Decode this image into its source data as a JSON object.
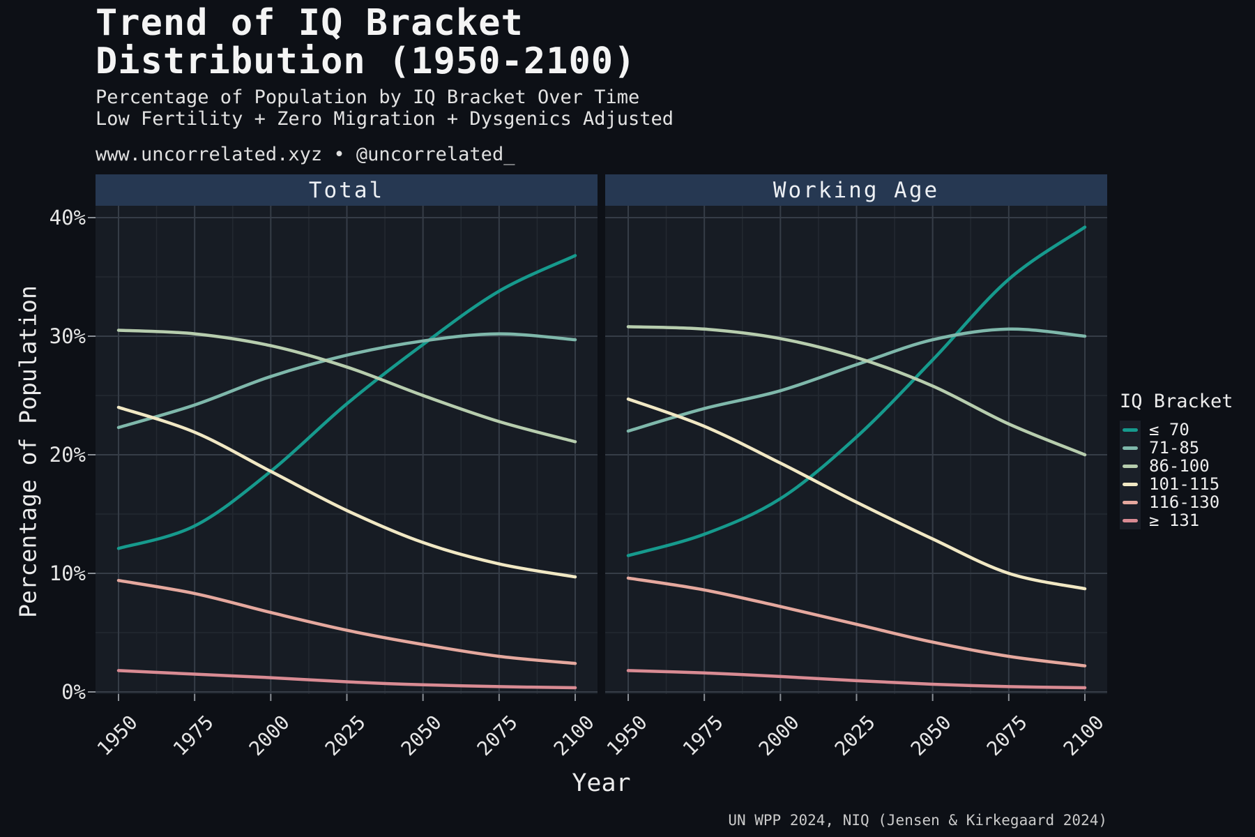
{
  "header": {
    "title_line1": "Trend of IQ Bracket",
    "title_line2": "Distribution (1950-2100)",
    "subtitle_line1": "Percentage of Population by IQ Bracket Over Time",
    "subtitle_line2": "Low Fertility + Zero Migration + Dysgenics Adjusted",
    "watermark": "www.uncorrelated.xyz • @uncorrelated_"
  },
  "axes": {
    "y_title": "Percentage of Population",
    "x_title": "Year"
  },
  "caption": "UN WPP 2024, NIQ (Jensen & Kirkegaard 2024)",
  "legend": {
    "title": "IQ Bracket"
  },
  "colors": {
    "page_bg": "#0d1016",
    "panel_bg": "#171c24",
    "strip_bg": "#263852",
    "grid_major": "#363d47",
    "grid_minor": "#232931",
    "tick": "#8a8f96"
  },
  "chart_data": {
    "type": "line",
    "x": [
      1950,
      1975,
      2000,
      2025,
      2050,
      2075,
      2100
    ],
    "x_tick_labels": [
      "1950",
      "1975",
      "2000",
      "2025",
      "2050",
      "2075",
      "2100"
    ],
    "y_ticks": [
      {
        "label": "0%",
        "value": 0
      },
      {
        "label": "10%",
        "value": 10
      },
      {
        "label": "20%",
        "value": 20
      },
      {
        "label": "30%",
        "value": 30
      },
      {
        "label": "40%",
        "value": 40
      }
    ],
    "ylim": [
      0,
      41.2
    ],
    "grid": true,
    "legend_position": "right",
    "panels": [
      {
        "label": "Total",
        "series": [
          {
            "name": "≤ 70",
            "key": "le70",
            "color": "#169a8d",
            "values": [
              12.1,
              14.0,
              18.6,
              24.3,
              29.3,
              33.8,
              36.8
            ]
          },
          {
            "name": "71-85",
            "key": "b71_85",
            "color": "#7fb8ab",
            "values": [
              22.3,
              24.2,
              26.6,
              28.4,
              29.6,
              30.2,
              29.7
            ]
          },
          {
            "name": "86-100",
            "key": "b86_100",
            "color": "#b7cdae",
            "values": [
              30.5,
              30.2,
              29.2,
              27.4,
              25.0,
              22.8,
              21.1
            ]
          },
          {
            "name": "101-115",
            "key": "b101_115",
            "color": "#f1e8c4",
            "values": [
              24.0,
              21.9,
              18.6,
              15.3,
              12.6,
              10.8,
              9.7
            ]
          },
          {
            "name": "116-130",
            "key": "b116_130",
            "color": "#e5a89e",
            "values": [
              9.4,
              8.3,
              6.7,
              5.2,
              4.0,
              3.0,
              2.4
            ]
          },
          {
            "name": "≥ 131",
            "key": "ge131",
            "color": "#d98b93",
            "values": [
              1.8,
              1.5,
              1.2,
              0.85,
              0.6,
              0.45,
              0.35
            ]
          }
        ]
      },
      {
        "label": "Working Age",
        "series": [
          {
            "name": "≤ 70",
            "key": "le70",
            "color": "#169a8d",
            "values": [
              11.5,
              13.3,
              16.3,
              21.5,
              28.0,
              34.8,
              39.2
            ]
          },
          {
            "name": "71-85",
            "key": "b71_85",
            "color": "#7fb8ab",
            "values": [
              22.0,
              23.9,
              25.4,
              27.6,
              29.7,
              30.6,
              30.0
            ]
          },
          {
            "name": "86-100",
            "key": "b86_100",
            "color": "#b7cdae",
            "values": [
              30.8,
              30.6,
              29.8,
              28.2,
              25.8,
              22.6,
              20.0
            ]
          },
          {
            "name": "101-115",
            "key": "b101_115",
            "color": "#f1e8c4",
            "values": [
              24.7,
              22.4,
              19.3,
              16.0,
              12.9,
              10.0,
              8.7
            ]
          },
          {
            "name": "116-130",
            "key": "b116_130",
            "color": "#e5a89e",
            "values": [
              9.6,
              8.6,
              7.2,
              5.7,
              4.2,
              3.0,
              2.2
            ]
          },
          {
            "name": "≥ 131",
            "key": "ge131",
            "color": "#d98b93",
            "values": [
              1.8,
              1.6,
              1.3,
              0.95,
              0.65,
              0.45,
              0.35
            ]
          }
        ]
      }
    ]
  }
}
